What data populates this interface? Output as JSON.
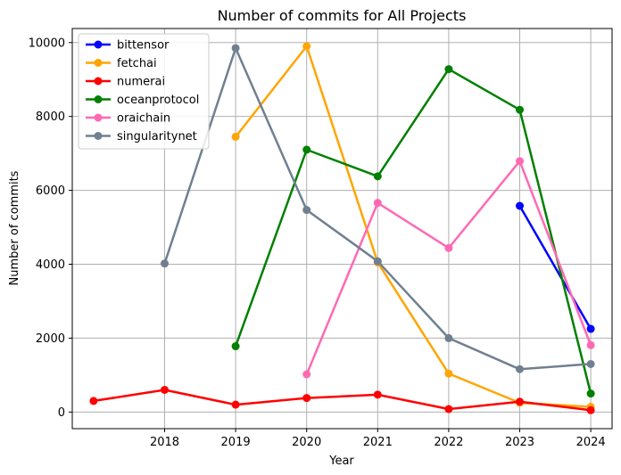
{
  "chart_data": {
    "type": "line",
    "title": "Number of commits for All Projects",
    "xlabel": "Year",
    "ylabel": "Number of commits",
    "x_ticks": [
      2018,
      2019,
      2020,
      2021,
      2022,
      2023,
      2024
    ],
    "y_ticks": [
      0,
      2000,
      4000,
      6000,
      8000,
      10000
    ],
    "xlim": [
      2016.7,
      2024.3
    ],
    "ylim": [
      -450,
      10380
    ],
    "grid": true,
    "legend_position": "top-left",
    "series": [
      {
        "name": "bittensor",
        "color": "#0000ff",
        "x": [
          2023,
          2024
        ],
        "y": [
          5580,
          2250
        ]
      },
      {
        "name": "fetchai",
        "color": "#ffa500",
        "x": [
          2019,
          2020,
          2021,
          2022,
          2023,
          2024
        ],
        "y": [
          7450,
          9900,
          4050,
          1040,
          250,
          140
        ]
      },
      {
        "name": "numerai",
        "color": "#ff0000",
        "x": [
          2017,
          2018,
          2019,
          2020,
          2021,
          2022,
          2023,
          2024
        ],
        "y": [
          300,
          600,
          200,
          380,
          470,
          80,
          280,
          50
        ]
      },
      {
        "name": "oceanprotocol",
        "color": "#008000",
        "x": [
          2019,
          2020,
          2021,
          2022,
          2023,
          2024
        ],
        "y": [
          1780,
          7100,
          6380,
          9280,
          8180,
          500
        ]
      },
      {
        "name": "oraichain",
        "color": "#ff69b4",
        "x": [
          2020,
          2021,
          2022,
          2023,
          2024
        ],
        "y": [
          1020,
          5660,
          4440,
          6790,
          1810
        ]
      },
      {
        "name": "singularitynet",
        "color": "#708090",
        "x": [
          2018,
          2019,
          2020,
          2021,
          2022,
          2023,
          2024
        ],
        "y": [
          4020,
          9850,
          5470,
          4080,
          2000,
          1160,
          1300
        ]
      }
    ]
  }
}
